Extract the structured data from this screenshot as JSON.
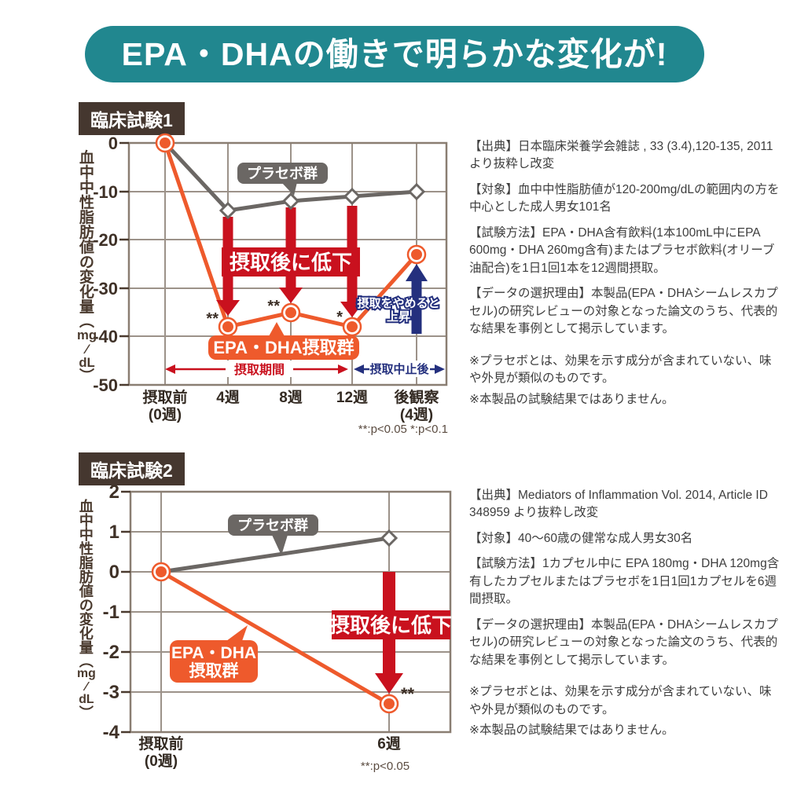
{
  "banner": {
    "title": "EPA・DHAの働きで明らかな変化が!"
  },
  "sections": [
    {
      "badge": "臨床試験1",
      "notes": [
        "【出典】日本臨床栄養学会雑誌 , 33 (3.4),120-135, 2011より抜粋し改変",
        "【対象】血中中性脂肪値が120-200mg/dLの範囲内の方を中心とした成人男女101名",
        "【試験方法】EPA・DHA含有飲料(1本100mL中にEPA 600mg・DHA 260mg含有)またはプラセボ飲料(オリーブ油配合)を1日1回1本を12週間摂取。",
        "【データの選択理由】本製品(EPA・DHAシームレスカプセル)の研究レビューの対象となった論文のうち、代表的な結果を事例として掲示しています。",
        "※プラセボとは、効果を示す成分が含まれていない、味や外見が類似のものです。",
        "※本製品の試験結果ではありません。"
      ]
    },
    {
      "badge": "臨床試験2",
      "notes": [
        "【出典】Mediators of Inflammation Vol. 2014, Article ID 348959 より抜粋し改変",
        "【対象】40〜60歳の健常な成人男女30名",
        "【試験方法】1カプセル中に EPA 180mg・DHA 120mg含有したカプセルまたはプラセボを1日1回1カプセルを6週間摂取。",
        "【データの選択理由】本製品(EPA・DHAシームレスカプセル)の研究レビューの対象となった論文のうち、代表的な結果を事例として掲示しています。",
        "※プラセボとは、効果を示す成分が含まれていない、味や外見が類似のものです。",
        "※本製品の試験結果ではありません。"
      ]
    }
  ],
  "chart_data": [
    {
      "type": "line",
      "title": "臨床試験1",
      "ylabel": "血中中性脂肪値の変化量(mg/dL)",
      "ylim": [
        -50,
        0
      ],
      "yticks": [
        "0",
        "-10",
        "-20",
        "-30",
        "-40",
        "-50"
      ],
      "grid": true,
      "categories": [
        [
          "摂取前",
          "(0週)"
        ],
        [
          "4週"
        ],
        [
          "8週"
        ],
        [
          "12週"
        ],
        [
          "後観察",
          "(4週)"
        ]
      ],
      "series": [
        {
          "name": "プラセボ群",
          "color": "#6b6764",
          "marker": "diamond",
          "values": [
            0,
            -14,
            -12,
            -11,
            -10
          ]
        },
        {
          "name": "EPA・DHA摂取群",
          "color": "#ee5a2c",
          "marker": "circle",
          "values": [
            0,
            -38,
            -35,
            -38,
            -23
          ]
        }
      ],
      "significance": [
        {
          "x_index": 1,
          "mark": "**"
        },
        {
          "x_index": 2,
          "mark": "**"
        },
        {
          "x_index": 3,
          "mark": "*"
        }
      ],
      "annotations": {
        "drop_label": "摂取後に低下",
        "stop_lines": [
          "摂取をやめると",
          "上昇"
        ],
        "intake_period": "摂取期間",
        "after_stop": "摂取中止後"
      },
      "footnote": "**:p<0.05 *:p<0.1"
    },
    {
      "type": "line",
      "title": "臨床試験2",
      "ylabel": "血中中性脂肪値の変化量(mg/dL)",
      "ylim": [
        -4,
        2
      ],
      "yticks": [
        "2",
        "1",
        "0",
        "-1",
        "-2",
        "-3",
        "-4"
      ],
      "grid": true,
      "categories": [
        [
          "摂取前",
          "(0週)"
        ],
        [
          "6週"
        ]
      ],
      "series": [
        {
          "name": "プラセボ群",
          "color": "#6b6764",
          "marker": "diamond",
          "values": [
            0,
            0.85
          ]
        },
        {
          "name": "EPA・DHA摂取群",
          "color": "#ee5a2c",
          "marker": "circle",
          "values": [
            0,
            -3.3
          ]
        }
      ],
      "significance": [
        {
          "x_index": 1,
          "mark": "**"
        }
      ],
      "annotations": {
        "drop_label": "摂取後に低下",
        "epa_lines": [
          "EPA・DHA",
          "摂取群"
        ]
      },
      "footnote": "**:p<0.05"
    }
  ]
}
